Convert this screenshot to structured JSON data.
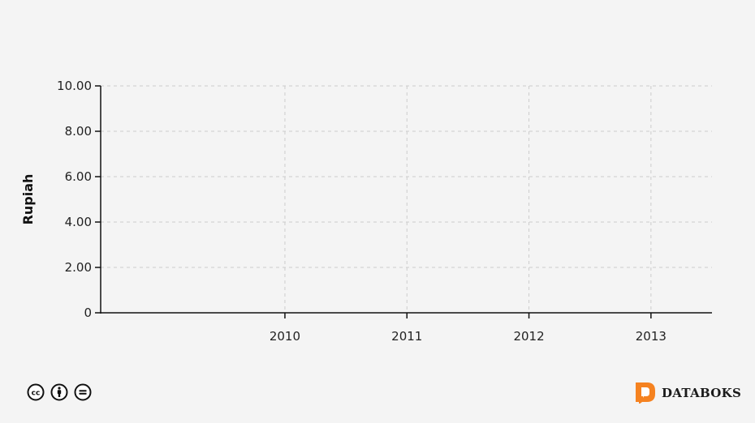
{
  "chart_data": {
    "type": "line",
    "title": "",
    "xlabel": "",
    "ylabel": "Rupiah",
    "x_ticks": [
      "2010",
      "2011",
      "2012",
      "2013"
    ],
    "xlim": [
      2008.49,
      2013.5
    ],
    "y_ticks": [
      "0",
      "2.00",
      "4.00",
      "6.00",
      "8.00",
      "10.00"
    ],
    "y_tick_values": [
      0,
      2,
      4,
      6,
      8,
      10
    ],
    "ylim": [
      0,
      10
    ],
    "grid": true,
    "series": []
  },
  "footer": {
    "license_icons": [
      "cc-icon",
      "attribution-icon",
      "no-derivatives-icon"
    ],
    "brand": "DATABOKS",
    "brand_color": "#f58220"
  }
}
